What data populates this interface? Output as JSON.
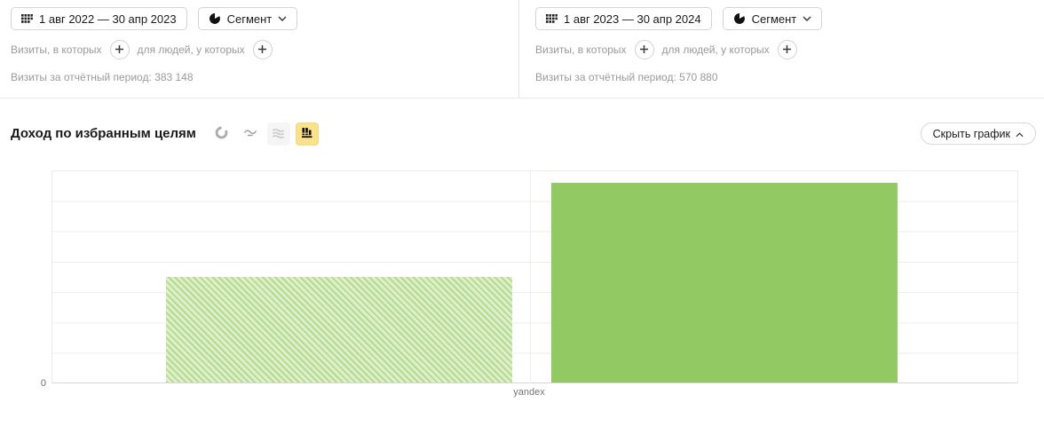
{
  "panels": [
    {
      "date_range": "1 авг 2022 — 30 апр 2023",
      "segment_button": "Сегмент",
      "visits_filter_label": "Визиты, в которых",
      "people_filter_label": "для людей, у которых",
      "report_visits_label": "Визиты за отчётный период:",
      "report_visits_value": "383 148"
    },
    {
      "date_range": "1 авг 2023 — 30 апр 2024",
      "segment_button": "Сегмент",
      "visits_filter_label": "Визиты, в которых",
      "people_filter_label": "для людей, у которых",
      "report_visits_label": "Визиты за отчётный период:",
      "report_visits_value": "570 880"
    }
  ],
  "chart_header": {
    "title": "Доход по избранным целям",
    "hide_chart_button": "Скрыть график"
  },
  "chart_data": {
    "type": "bar",
    "title": "Доход по избранным целям",
    "categories": [
      "yandex"
    ],
    "series": [
      {
        "name": "1 авг 2022 — 30 апр 2023",
        "style": "hatched",
        "values": [
          0.496
        ]
      },
      {
        "name": "1 авг 2023 — 30 апр 2024",
        "style": "solid",
        "values": [
          0.938
        ]
      }
    ],
    "ylim": [
      0,
      1
    ],
    "y_tick_labels": [
      "0"
    ],
    "x_tick_labels": [
      "yandex"
    ],
    "grid": "horizontal, 7 equal bands, light grey",
    "legend": "none",
    "note": "y-axis shows only 0; bar values estimated as fraction of plot max height"
  },
  "colors": {
    "bar_solid": "#92c962",
    "bar_hatch_dark": "#b5da8e",
    "bar_hatch_light": "#def0cb",
    "selected_icon_bg": "#fae289",
    "grid_line": "#ededed",
    "muted_text": "#9a9a9a"
  }
}
